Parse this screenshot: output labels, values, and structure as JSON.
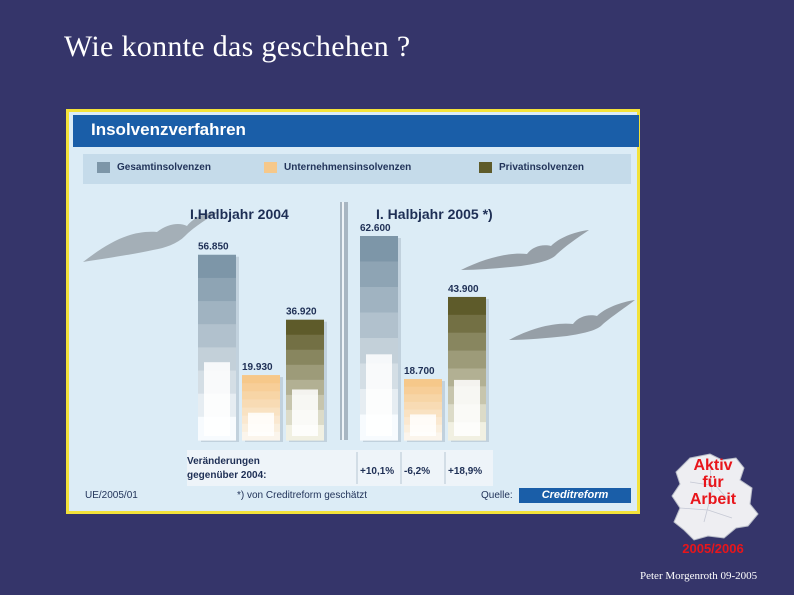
{
  "slide": {
    "title": "Wie konnte das geschehen ?",
    "author": "Peter Morgenroth 09-2005"
  },
  "panel": {
    "header": "Insolvenzverfahren",
    "footer_left": "UE/2005/01",
    "footer_note": "*) von Creditreform geschätzt",
    "footer_source": "Quelle:",
    "source_logo": "Creditreform"
  },
  "badge": {
    "line1": "Aktiv",
    "line2": "für",
    "line3": "Arbeit",
    "year": "2005/2006"
  },
  "colors": {
    "background": "#35356a",
    "gesamt": "#7d96a8",
    "unternehmen": "#f6c88a",
    "privat": "#5e5b2a",
    "header": "#1a5ea8",
    "frame": "#f3e23a"
  },
  "chart_data": {
    "type": "bar",
    "title": "Insolvenzverfahren",
    "categories": [
      "I.Halbjahr 2004",
      "I. Halbjahr 2005 *)"
    ],
    "series": [
      {
        "name": "Gesamtinsolvenzen",
        "values": [
          56850,
          62600
        ],
        "labels": [
          "56.850",
          "62.600"
        ]
      },
      {
        "name": "Unternehmensinsolvenzen",
        "values": [
          19930,
          18700
        ],
        "labels": [
          "19.930",
          "18.700"
        ]
      },
      {
        "name": "Privatinsolvenzen",
        "values": [
          36920,
          43900
        ],
        "labels": [
          "36.920",
          "43.900"
        ]
      }
    ],
    "changes": {
      "label_line1": "Veränderungen",
      "label_line2": "gegenüber 2004:",
      "values": [
        "+10,1%",
        "-6,2%",
        "+18,9%"
      ]
    },
    "ylim": [
      0,
      62600
    ],
    "legend_position": "top",
    "grid": false
  }
}
